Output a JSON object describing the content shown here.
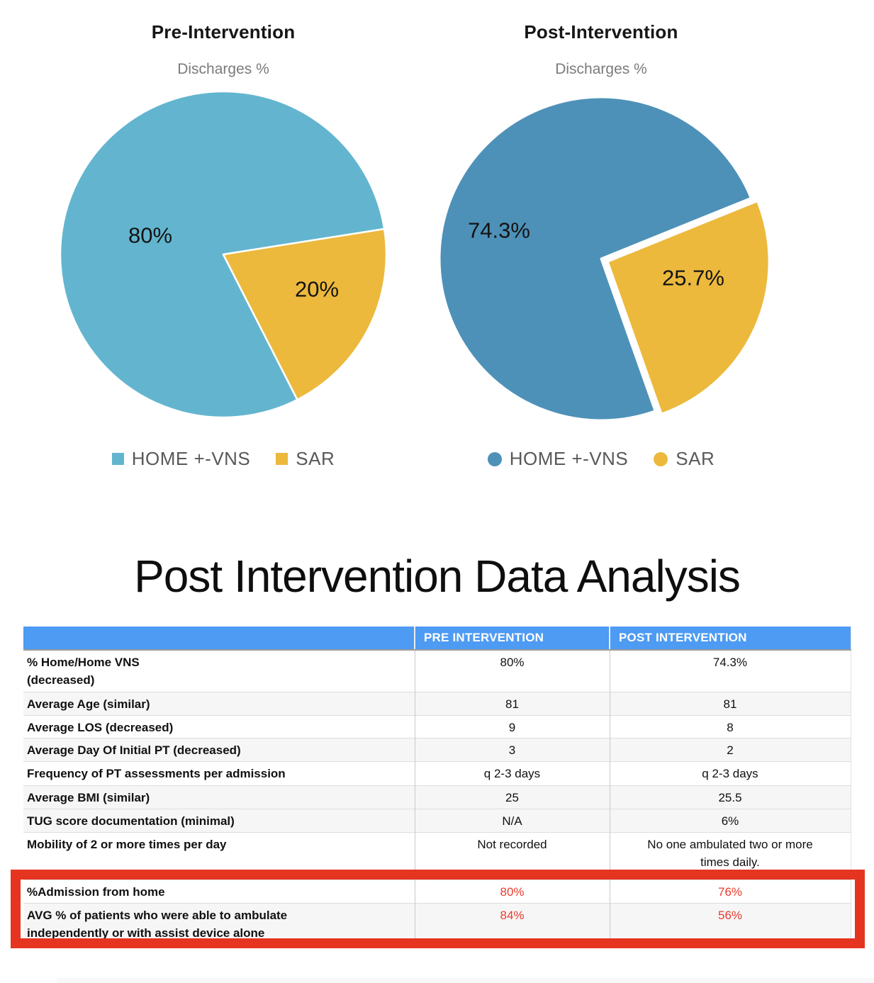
{
  "section_title": "Post Intervention Data Analysis",
  "chart_data": [
    {
      "type": "pie",
      "title": "Pre-Intervention",
      "subtitle": "Discharges %",
      "labels": [
        "HOME +-VNS",
        "SAR"
      ],
      "values": [
        80,
        20
      ],
      "value_labels": [
        "80%",
        "20%"
      ],
      "colors": [
        "#63b5cf",
        "#ecb93d"
      ],
      "legend_position": "bottom",
      "legend_marker": "square"
    },
    {
      "type": "pie",
      "title": "Post-Intervention",
      "subtitle": "Discharges %",
      "labels": [
        "HOME +-VNS",
        "SAR"
      ],
      "values": [
        74.3,
        25.7
      ],
      "value_labels": [
        "74.3%",
        "25.7%"
      ],
      "colors": [
        "#4e91b8",
        "#ecb93d"
      ],
      "legend_position": "bottom",
      "legend_marker": "circle",
      "exploded_slice": "SAR"
    }
  ],
  "table": {
    "columns": [
      "",
      "PRE INTERVENTION",
      "POST INTERVENTION"
    ],
    "rows": [
      {
        "label": "% Home/Home VNS\n(decreased)",
        "pre": "80%",
        "post": "74.3%",
        "shaded": false,
        "highlight": false
      },
      {
        "label": "Average Age (similar)",
        "pre": "81",
        "post": "81",
        "shaded": true,
        "highlight": false
      },
      {
        "label": "Average LOS (decreased)",
        "pre": "9",
        "post": "8",
        "shaded": false,
        "highlight": false
      },
      {
        "label": "Average Day Of Initial PT (decreased)",
        "pre": "3",
        "post": "2",
        "shaded": true,
        "highlight": false
      },
      {
        "label": "Frequency of PT assessments per admission",
        "pre": "q 2-3 days",
        "post": "q 2-3 days",
        "shaded": false,
        "highlight": false
      },
      {
        "label": "Average BMI (similar)",
        "pre": "25",
        "post": "25.5",
        "shaded": true,
        "highlight": false
      },
      {
        "label": "TUG score documentation (minimal)",
        "pre": "N/A",
        "post": "6%",
        "shaded": true,
        "highlight": false
      },
      {
        "label": "Mobility of 2 or more times per day",
        "pre": "Not recorded",
        "post": "No one ambulated two or more\ntimes daily.",
        "shaded": false,
        "highlight": false
      },
      {
        "label": "%Admission from home",
        "pre": "80%",
        "post": "76%",
        "shaded": false,
        "highlight": true
      },
      {
        "label": "AVG % of patients who were able to ambulate\nindependently or with assist device alone",
        "pre": "84%",
        "post": "56%",
        "shaded": true,
        "highlight": true
      }
    ],
    "colors": {
      "header_bg": "#4d9bf3",
      "header_text": "#ffffff",
      "shaded_row_bg": "#f6f6f6",
      "highlight_value_text": "#ea3b2e",
      "highlight_box_border": "#e5341f"
    }
  }
}
